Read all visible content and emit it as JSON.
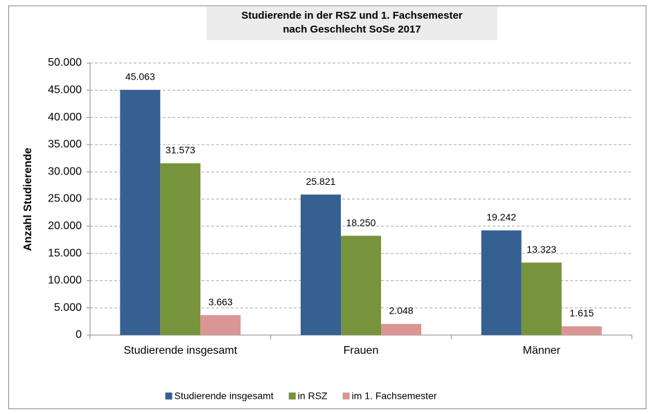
{
  "chart_data": {
    "type": "bar",
    "title": [
      "Studierende in der RSZ und 1. Fachsemester",
      "nach Geschlecht SoSe 2017"
    ],
    "y_label": "Anzahl Studierende",
    "categories": [
      "Studierende insgesamt",
      "Frauen",
      "Männer"
    ],
    "series": [
      {
        "name": "Studierende insgesamt",
        "color": "#376092",
        "values": [
          45063,
          25821,
          19242
        ],
        "value_labels": [
          "45.063",
          "25.821",
          "19.242"
        ]
      },
      {
        "name": "in RSZ",
        "color": "#77933c",
        "values": [
          31573,
          18250,
          13323
        ],
        "value_labels": [
          "31.573",
          "18.250",
          "13.323"
        ]
      },
      {
        "name": "im 1. Fachsemester",
        "color": "#d99694",
        "values": [
          3663,
          2048,
          1615
        ],
        "value_labels": [
          "3.663",
          "2.048",
          "1.615"
        ]
      }
    ],
    "ylim": [
      0,
      50000
    ],
    "yticks": [
      0,
      {
        "value": 5000,
        "label": "5.000"
      },
      {
        "value": 10000,
        "label": "10.000"
      },
      {
        "value": 15000,
        "label": "15.000"
      },
      {
        "value": 20000,
        "label": "20.000"
      },
      {
        "value": 25000,
        "label": "25.000"
      },
      {
        "value": 30000,
        "label": "30.000"
      },
      {
        "value": 35000,
        "label": "35.000"
      },
      {
        "value": 40000,
        "label": "40.000"
      },
      {
        "value": 45000,
        "label": "45.000"
      },
      {
        "value": 50000,
        "label": "50.000"
      }
    ],
    "grid": true,
    "legend": "bottom"
  }
}
